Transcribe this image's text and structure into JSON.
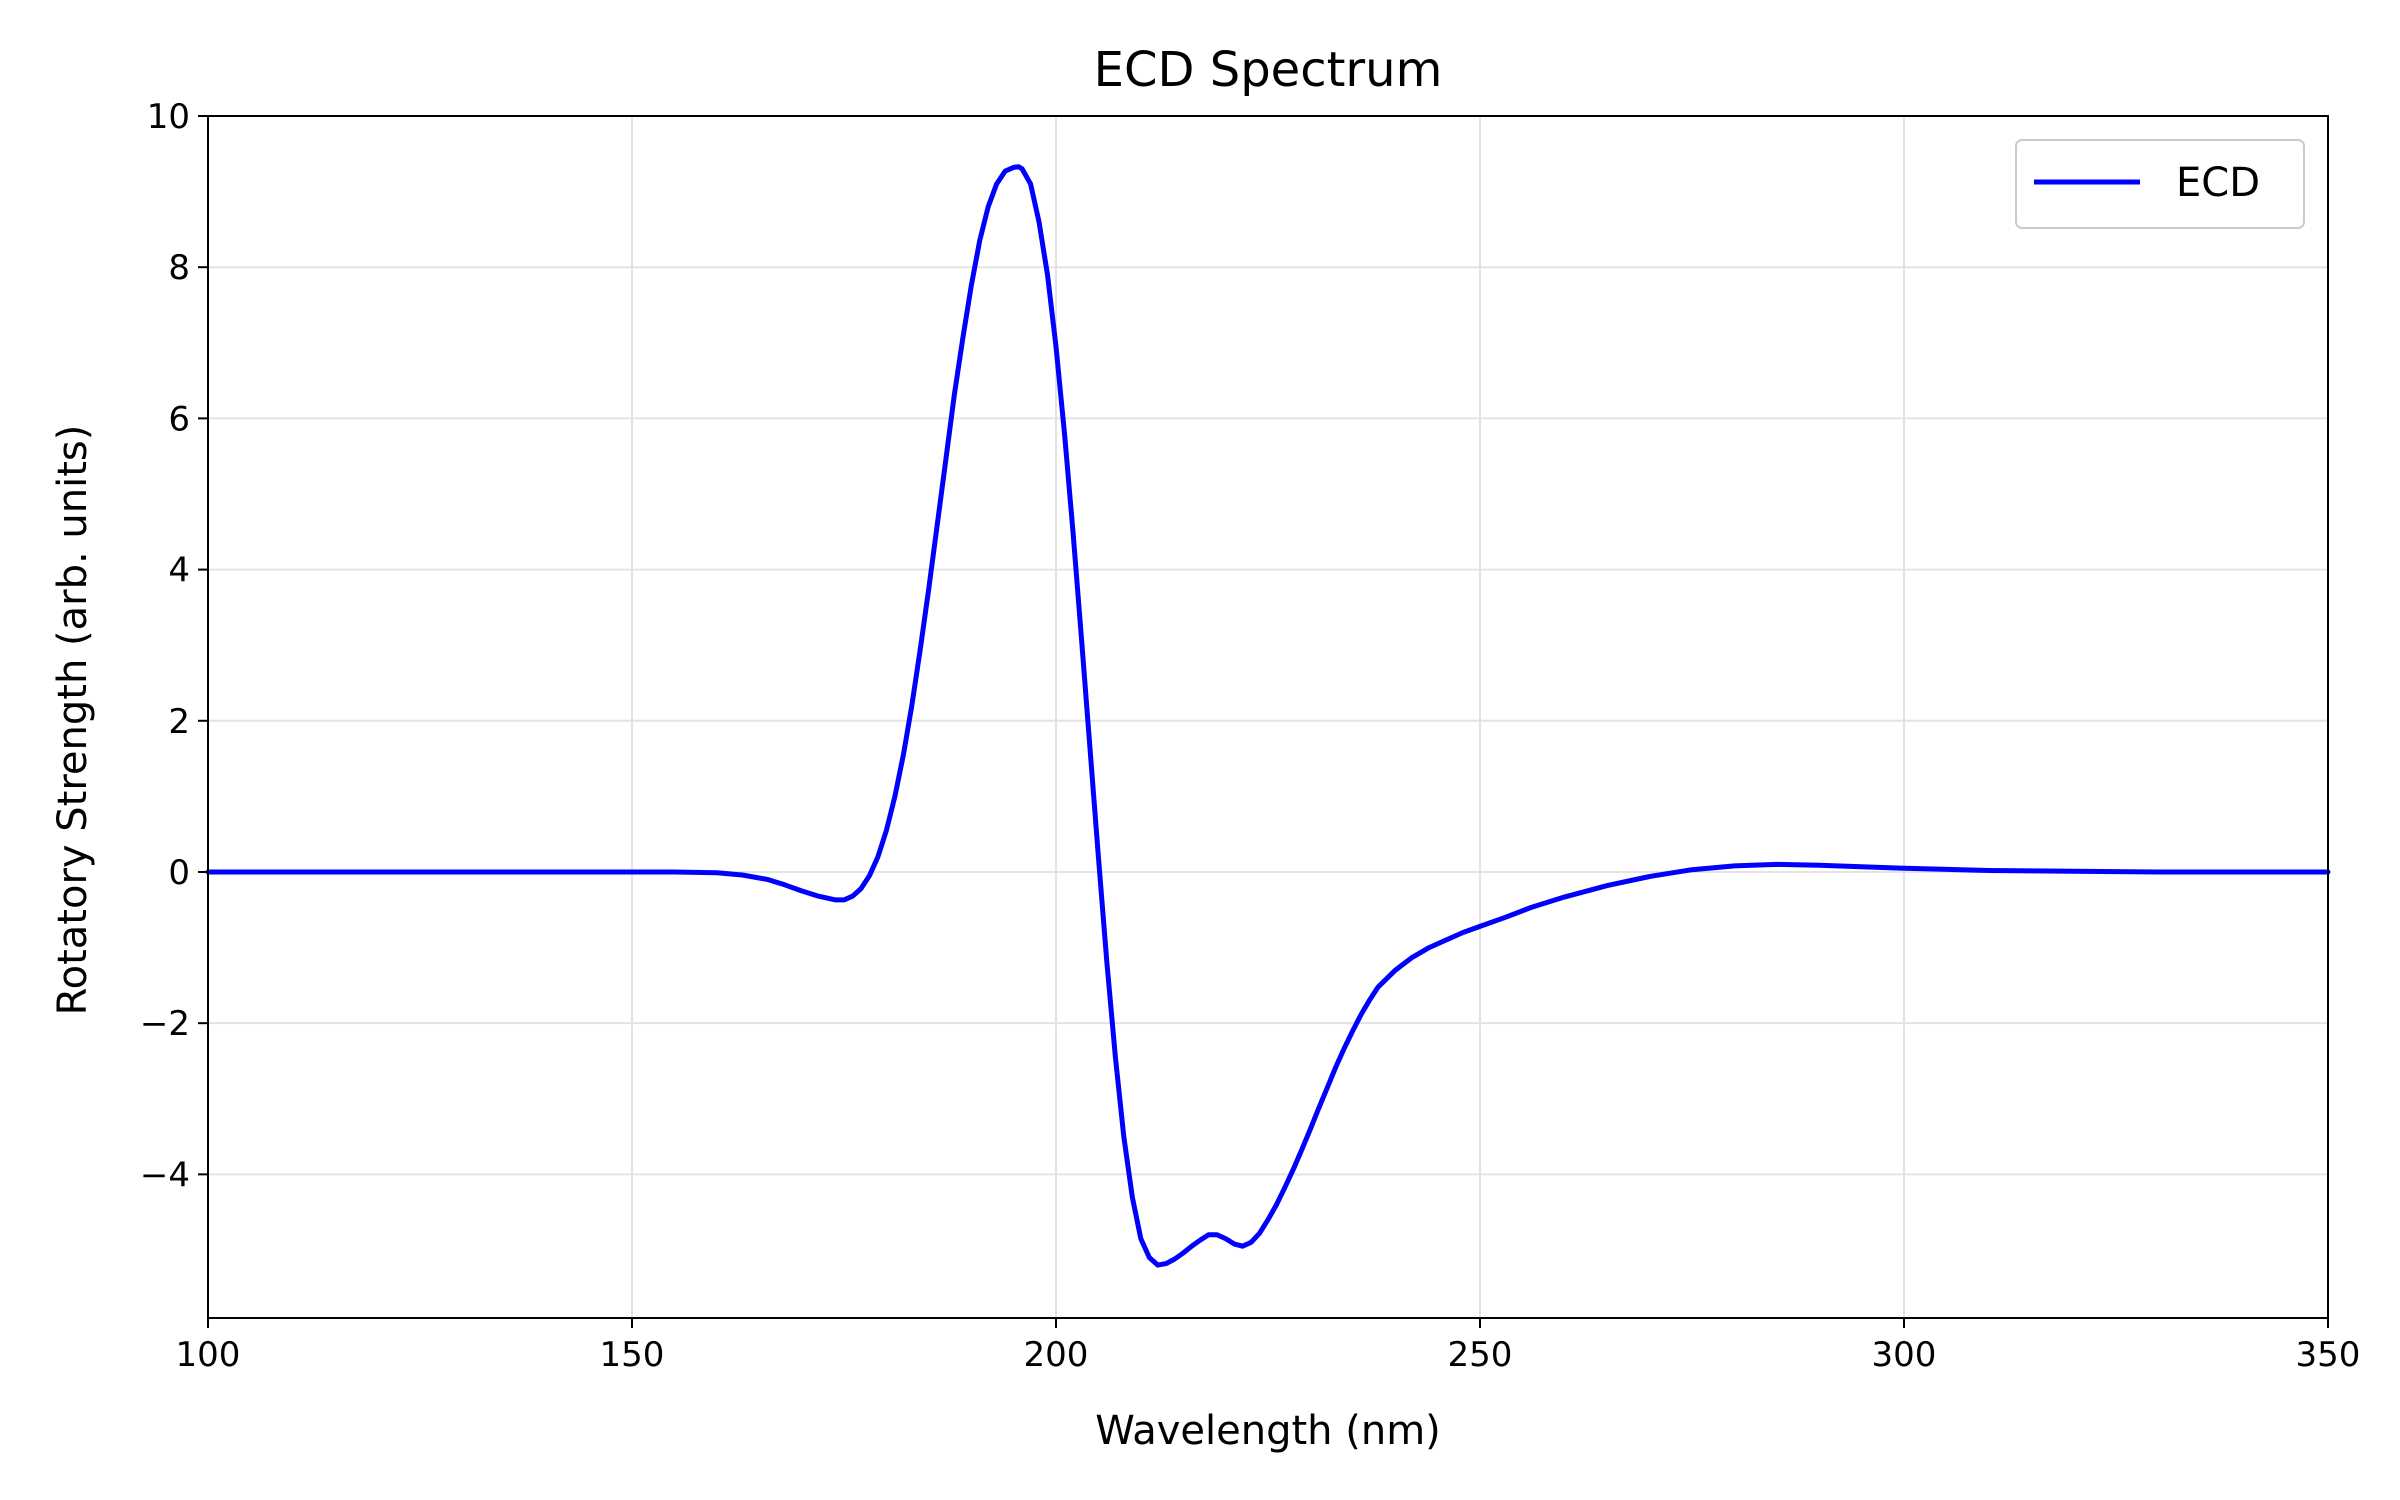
{
  "chart_data": {
    "type": "line",
    "title": "ECD Spectrum",
    "xlabel": "Wavelength (nm)",
    "ylabel": "Rotatory Strength (arb. units)",
    "xlim": [
      100,
      350
    ],
    "ylim": [
      -5.9,
      10
    ],
    "xticks": [
      "100",
      "150",
      "200",
      "250",
      "300",
      "350"
    ],
    "yticks": [
      "−4",
      "−2",
      "0",
      "2",
      "4",
      "6",
      "8",
      "10"
    ],
    "xtick_values": [
      100,
      150,
      200,
      250,
      300,
      350
    ],
    "ytick_values": [
      -4,
      -2,
      0,
      2,
      4,
      6,
      8,
      10
    ],
    "grid": true,
    "legend_position": "top-right",
    "series": [
      {
        "name": "ECD",
        "color": "#0000ff",
        "x": [
          100,
          140,
          155,
          160,
          163,
          166,
          168,
          170,
          172,
          174,
          175,
          176,
          177,
          178,
          179,
          180,
          181,
          182,
          183,
          184,
          185,
          186,
          187,
          188,
          189,
          190,
          191,
          192,
          193,
          194,
          195,
          195.6,
          196,
          197,
          198,
          199,
          200,
          201,
          202,
          203,
          204,
          205,
          206,
          207,
          208,
          209,
          210,
          211,
          212,
          213,
          214,
          215,
          216,
          217,
          218,
          218.5,
          219,
          220,
          221,
          222,
          223,
          224,
          225,
          226,
          227,
          228,
          229,
          230,
          231,
          232,
          233,
          234,
          235,
          236,
          237,
          238,
          240,
          242,
          244,
          246,
          248,
          250,
          253,
          256,
          260,
          265,
          270,
          275,
          280,
          285,
          290,
          295,
          300,
          310,
          320,
          330,
          340,
          350
        ],
        "y": [
          0,
          0,
          0,
          -0.01,
          -0.04,
          -0.1,
          -0.17,
          -0.25,
          -0.32,
          -0.37,
          -0.37,
          -0.32,
          -0.22,
          -0.05,
          0.2,
          0.55,
          1.0,
          1.55,
          2.2,
          2.95,
          3.75,
          4.6,
          5.45,
          6.3,
          7.05,
          7.75,
          8.35,
          8.8,
          9.1,
          9.27,
          9.32,
          9.33,
          9.3,
          9.1,
          8.6,
          7.9,
          6.95,
          5.8,
          4.5,
          3.1,
          1.65,
          0.2,
          -1.2,
          -2.45,
          -3.5,
          -4.3,
          -4.85,
          -5.1,
          -5.2,
          -5.18,
          -5.12,
          -5.04,
          -4.95,
          -4.87,
          -4.8,
          -4.8,
          -4.8,
          -4.85,
          -4.92,
          -4.95,
          -4.9,
          -4.78,
          -4.6,
          -4.4,
          -4.17,
          -3.93,
          -3.67,
          -3.4,
          -3.12,
          -2.85,
          -2.58,
          -2.33,
          -2.1,
          -1.88,
          -1.69,
          -1.52,
          -1.3,
          -1.13,
          -1.0,
          -0.9,
          -0.8,
          -0.72,
          -0.6,
          -0.47,
          -0.33,
          -0.18,
          -0.06,
          0.03,
          0.08,
          0.1,
          0.09,
          0.07,
          0.05,
          0.02,
          0.01,
          0,
          0,
          0
        ]
      }
    ]
  }
}
